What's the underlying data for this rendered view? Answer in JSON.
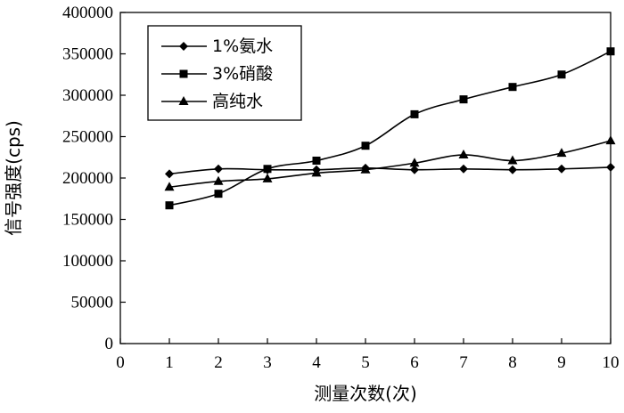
{
  "chart_data": {
    "type": "line",
    "xlabel": "测量次数(次)",
    "ylabel": "信号强度(cps)",
    "xlim": [
      0,
      10
    ],
    "ylim": [
      0,
      400000
    ],
    "x_ticks": [
      0,
      1,
      2,
      3,
      4,
      5,
      6,
      7,
      8,
      9,
      10
    ],
    "y_ticks": [
      0,
      50000,
      100000,
      150000,
      200000,
      250000,
      300000,
      350000,
      400000
    ],
    "grid": false,
    "legend_position": "top-left",
    "x": [
      1,
      2,
      3,
      4,
      5,
      6,
      7,
      8,
      9,
      10
    ],
    "series": [
      {
        "name": "1%氨水",
        "marker": "diamond",
        "color": "#000000",
        "values": [
          205000,
          211000,
          210000,
          210000,
          212000,
          210000,
          211000,
          210000,
          211000,
          213000
        ]
      },
      {
        "name": "3%硝酸",
        "marker": "square",
        "color": "#000000",
        "values": [
          167000,
          181000,
          211000,
          221000,
          239000,
          277000,
          295000,
          310000,
          325000,
          353000
        ]
      },
      {
        "name": "高纯水",
        "marker": "triangle",
        "color": "#000000",
        "values": [
          189000,
          196000,
          199000,
          206000,
          210000,
          218000,
          228000,
          221000,
          230000,
          245000
        ]
      }
    ]
  }
}
